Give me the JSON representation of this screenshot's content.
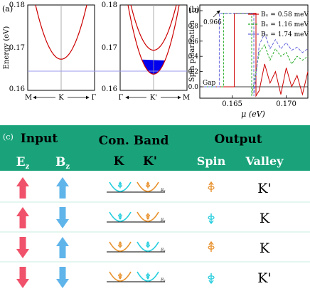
{
  "figure": {
    "panel_a_label": "(a)",
    "panel_b_label": "(b)",
    "panel_c_label": "(c)"
  },
  "chart_data": [
    {
      "type": "line",
      "panel": "a-left",
      "ylabel": "Energy (eV)",
      "ylim": [
        0.16,
        0.18
      ],
      "yticks": [
        "0.16",
        "0.17",
        "0.18"
      ],
      "xticks": [
        "M",
        "K",
        "Γ"
      ],
      "curves": [
        {
          "name": "",
          "color": "#cc0000",
          "min_energy": 0.1673
        }
      ],
      "reference_line": {
        "energy": 0.1672,
        "color": "#9999ee"
      }
    },
    {
      "type": "line",
      "panel": "a-right",
      "ylim": [
        0.16,
        0.18
      ],
      "yticks": [
        "0.16",
        "0.17",
        "0.18"
      ],
      "xticks": [
        "Γ",
        "K'",
        "M"
      ],
      "curves": [
        {
          "name": "",
          "color": "#cc0000",
          "min_energy": 0.1638
        },
        {
          "name": "",
          "color": "#cc0000",
          "min_energy": 0.1694
        }
      ],
      "filled_region": {
        "from": 0.1638,
        "to": 0.1672,
        "color": "#0000ee"
      },
      "reference_line": {
        "energy": 0.1672,
        "color": "#9999ee"
      }
    },
    {
      "type": "line",
      "panel": "b",
      "xlabel": "μ (eV)",
      "ylabel": "Spin ploarization",
      "xlim": [
        0.162,
        0.172
      ],
      "ylim": [
        -0.28,
        1.0
      ],
      "xticks": [
        0.165,
        0.17
      ],
      "yticks": [
        "0.0",
        "0.2",
        "0.4",
        "0.6",
        "0.8",
        "1.0"
      ],
      "annotations": {
        "plateau": "0.966",
        "gap": "Gap"
      },
      "series": [
        {
          "name": "Bₓ = 0.58 meV",
          "color": "#cc0000",
          "plateau": [
            0.1652,
            0.1672
          ],
          "noise": [
            [
              0.1675,
              -0.05
            ],
            [
              0.168,
              0.3
            ],
            [
              0.1685,
              0.05
            ],
            [
              0.169,
              0.2
            ],
            [
              0.1695,
              -0.1
            ],
            [
              0.17,
              0.25
            ],
            [
              0.1705,
              0.0
            ],
            [
              0.171,
              0.15
            ],
            [
              0.1715,
              -0.1
            ],
            [
              0.172,
              0.2
            ]
          ]
        },
        {
          "name": "Bₓ = 1.16 meV",
          "color": "#22aa22",
          "plateau": [
            0.1642,
            0.1668
          ],
          "noise": [
            [
              0.1675,
              0.45
            ],
            [
              0.168,
              0.55
            ],
            [
              0.1685,
              0.35
            ],
            [
              0.169,
              0.5
            ],
            [
              0.1695,
              0.4
            ],
            [
              0.17,
              0.45
            ],
            [
              0.1705,
              0.3
            ],
            [
              0.171,
              0.4
            ],
            [
              0.1715,
              0.35
            ],
            [
              0.172,
              0.4
            ]
          ]
        },
        {
          "name": "Bₓ = 1.74 meV",
          "color": "#6666dd",
          "plateau": [
            0.1638,
            0.167
          ],
          "noise": [
            [
              0.1675,
              0.55
            ],
            [
              0.168,
              0.7
            ],
            [
              0.1685,
              0.5
            ],
            [
              0.169,
              0.62
            ],
            [
              0.1695,
              0.5
            ],
            [
              0.17,
              0.58
            ],
            [
              0.1705,
              0.48
            ],
            [
              0.171,
              0.52
            ],
            [
              0.1715,
              0.45
            ],
            [
              0.172,
              0.5
            ]
          ]
        }
      ]
    }
  ],
  "table": {
    "bg_color": "#1aa37a",
    "headers": {
      "input": "Input",
      "ez": "E",
      "ez_sub": "z",
      "bz": "B",
      "bz_sub": "z",
      "band": "Con. Band",
      "k": "K",
      "kp": "K'",
      "output": "Output",
      "spin": "Spin",
      "valley": "Valley"
    },
    "mu_label": "μ",
    "mu_sub": "0",
    "rows": [
      {
        "ez": "up",
        "bz": "up",
        "band_left": "cyan",
        "band_right": "orange",
        "spin": "up",
        "valley": "K'"
      },
      {
        "ez": "up",
        "bz": "down",
        "band_left": "cyan",
        "band_right": "orange",
        "spin": "down",
        "valley": "K"
      },
      {
        "ez": "down",
        "bz": "up",
        "band_left": "orange",
        "band_right": "cyan",
        "spin": "up",
        "valley": "K"
      },
      {
        "ez": "down",
        "bz": "down",
        "band_left": "orange",
        "band_right": "cyan",
        "spin": "down",
        "valley": "K'"
      }
    ]
  }
}
